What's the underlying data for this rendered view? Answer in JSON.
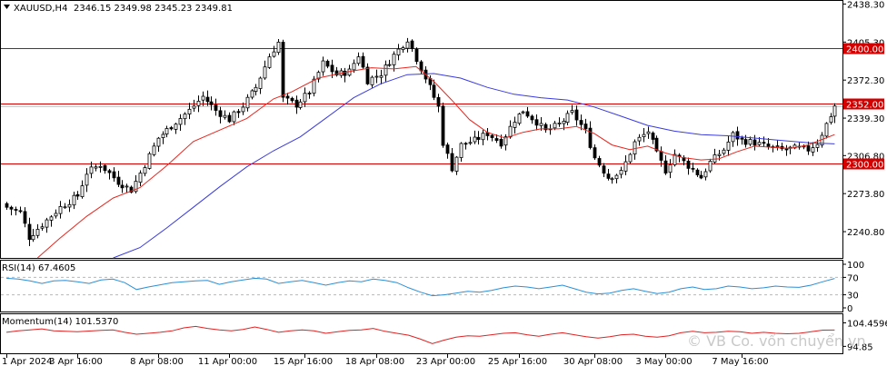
{
  "symbol_header": {
    "symbol": "XAUUSD,H4",
    "ohlc": "2346.15 2349.98 2345.23 2349.81"
  },
  "watermark": "© VB Co. vốn chuyển vn",
  "colors": {
    "bull": "#000000",
    "bear": "#000000",
    "ma_fast": "#e8261e",
    "ma_slow": "#3a3ae0",
    "level": "#d40000",
    "rsi": "#2d8fd6",
    "momentum": "#e02222",
    "level_label_bg": "#d40000",
    "level_label_text": "#ffffff"
  },
  "chart_data": [
    {
      "type": "candlestick",
      "title": "XAUUSD,H4",
      "ylim": [
        2218,
        2441
      ],
      "price_ticks": [
        "2438.30",
        "2405.30",
        "2372.30",
        "2339.30",
        "2306.80",
        "2273.80",
        "2240.80"
      ],
      "x_labels": [
        "1 Apr 2024",
        "3 Apr 16:00",
        "8 Apr 08:00",
        "11 Apr 00:00",
        "15 Apr 16:00",
        "18 Apr 08:00",
        "23 Apr 00:00",
        "25 Apr 16:00",
        "30 Apr 08:00",
        "3 May 00:00",
        "7 May 16:00"
      ],
      "x_label_bar_index": [
        0,
        16,
        34,
        50,
        67,
        83,
        99,
        115,
        132,
        148,
        165
      ],
      "levels": [
        {
          "label": "2400.00",
          "value": 2400.0
        },
        {
          "label": "2352.00",
          "value": 2352.0
        },
        {
          "label": "2300.00",
          "value": 2300.0
        }
      ],
      "current_price": 2349.81,
      "close_path": [
        [
          0,
          2262
        ],
        [
          3,
          2258
        ],
        [
          5,
          2236
        ],
        [
          8,
          2247
        ],
        [
          12,
          2262
        ],
        [
          16,
          2272
        ],
        [
          18,
          2292
        ],
        [
          21,
          2299
        ],
        [
          25,
          2284
        ],
        [
          28,
          2277
        ],
        [
          31,
          2299
        ],
        [
          34,
          2322
        ],
        [
          38,
          2336
        ],
        [
          41,
          2346
        ],
        [
          44,
          2358
        ],
        [
          47,
          2346
        ],
        [
          50,
          2338
        ],
        [
          53,
          2350
        ],
        [
          56,
          2366
        ],
        [
          59,
          2393
        ],
        [
          61,
          2405
        ],
        [
          62,
          2356
        ],
        [
          65,
          2351
        ],
        [
          68,
          2362
        ],
        [
          71,
          2387
        ],
        [
          74,
          2377
        ],
        [
          77,
          2380
        ],
        [
          79,
          2394
        ],
        [
          81,
          2372
        ],
        [
          84,
          2378
        ],
        [
          87,
          2394
        ],
        [
          90,
          2408
        ],
        [
          92,
          2391
        ],
        [
          95,
          2366
        ],
        [
          97,
          2349
        ],
        [
          98,
          2318
        ],
        [
          100,
          2296
        ],
        [
          102,
          2316
        ],
        [
          105,
          2320
        ],
        [
          108,
          2326
        ],
        [
          111,
          2318
        ],
        [
          114,
          2338
        ],
        [
          116,
          2346
        ],
        [
          119,
          2336
        ],
        [
          121,
          2328
        ],
        [
          124,
          2334
        ],
        [
          127,
          2344
        ],
        [
          130,
          2328
        ],
        [
          132,
          2305
        ],
        [
          135,
          2288
        ],
        [
          138,
          2292
        ],
        [
          141,
          2318
        ],
        [
          144,
          2328
        ],
        [
          146,
          2308
        ],
        [
          148,
          2294
        ],
        [
          150,
          2308
        ],
        [
          153,
          2298
        ],
        [
          156,
          2288
        ],
        [
          158,
          2301
        ],
        [
          161,
          2312
        ],
        [
          163,
          2325
        ],
        [
          165,
          2320
        ],
        [
          168,
          2318
        ],
        [
          171,
          2314
        ],
        [
          174,
          2312
        ],
        [
          177,
          2313
        ],
        [
          180,
          2312
        ],
        [
          182,
          2318
        ],
        [
          184,
          2334
        ],
        [
          186,
          2349.81
        ]
      ],
      "ma_fast_path": [
        [
          7,
          2218
        ],
        [
          12,
          2235
        ],
        [
          18,
          2254
        ],
        [
          24,
          2270
        ],
        [
          30,
          2279
        ],
        [
          36,
          2298
        ],
        [
          42,
          2319
        ],
        [
          48,
          2329
        ],
        [
          54,
          2339
        ],
        [
          60,
          2356
        ],
        [
          64,
          2362
        ],
        [
          70,
          2374
        ],
        [
          76,
          2379
        ],
        [
          82,
          2383
        ],
        [
          87,
          2382
        ],
        [
          92,
          2384
        ],
        [
          96,
          2371
        ],
        [
          100,
          2355
        ],
        [
          104,
          2338
        ],
        [
          108,
          2327
        ],
        [
          112,
          2322
        ],
        [
          116,
          2327
        ],
        [
          120,
          2330
        ],
        [
          124,
          2330
        ],
        [
          128,
          2332
        ],
        [
          132,
          2326
        ],
        [
          136,
          2316
        ],
        [
          140,
          2312
        ],
        [
          144,
          2315
        ],
        [
          148,
          2309
        ],
        [
          152,
          2305
        ],
        [
          156,
          2303
        ],
        [
          160,
          2304
        ],
        [
          164,
          2310
        ],
        [
          168,
          2315
        ],
        [
          172,
          2314
        ],
        [
          176,
          2313
        ],
        [
          180,
          2316
        ],
        [
          184,
          2322
        ],
        [
          186,
          2325
        ]
      ],
      "ma_slow_path": [
        [
          24,
          2218
        ],
        [
          30,
          2227
        ],
        [
          36,
          2244
        ],
        [
          42,
          2262
        ],
        [
          48,
          2280
        ],
        [
          54,
          2297
        ],
        [
          60,
          2311
        ],
        [
          66,
          2323
        ],
        [
          72,
          2340
        ],
        [
          78,
          2357
        ],
        [
          84,
          2369
        ],
        [
          90,
          2377
        ],
        [
          96,
          2378
        ],
        [
          102,
          2374
        ],
        [
          108,
          2366
        ],
        [
          114,
          2360
        ],
        [
          120,
          2357
        ],
        [
          126,
          2355
        ],
        [
          132,
          2349
        ],
        [
          138,
          2341
        ],
        [
          144,
          2333
        ],
        [
          150,
          2328
        ],
        [
          156,
          2325
        ],
        [
          162,
          2324
        ],
        [
          168,
          2322
        ],
        [
          174,
          2320
        ],
        [
          180,
          2318
        ],
        [
          186,
          2317
        ]
      ]
    },
    {
      "type": "line",
      "title": "RSI(14) 67.4605",
      "ylim": [
        0,
        100
      ],
      "ticks": [
        "100",
        "70",
        "30",
        "0"
      ],
      "overbought": 70,
      "oversold": 30,
      "series": [
        {
          "name": "RSI(14)",
          "values": [
            68,
            66,
            62,
            56,
            62,
            63,
            60,
            56,
            64,
            66,
            58,
            42,
            48,
            53,
            58,
            60,
            62,
            63,
            54,
            60,
            64,
            68,
            66,
            56,
            60,
            63,
            58,
            52,
            58,
            62,
            60,
            66,
            63,
            58,
            46,
            36,
            28,
            30,
            34,
            38,
            36,
            40,
            46,
            50,
            48,
            44,
            48,
            52,
            44,
            36,
            32,
            34,
            40,
            44,
            38,
            33,
            36,
            44,
            48,
            42,
            44,
            50,
            48,
            44,
            46,
            50,
            48,
            47,
            52,
            60,
            67.46
          ]
        }
      ]
    },
    {
      "type": "line",
      "title": "Momentum(14) 101.5370",
      "ticks": [
        "104.4596",
        "94.85"
      ],
      "ylim": [
        93.5,
        106.5
      ],
      "series": [
        {
          "name": "Momentum(14)",
          "values": [
            100.6,
            101.2,
            101.6,
            102.0,
            101.2,
            101.0,
            100.8,
            101.1,
            101.4,
            101.6,
            100.6,
            99.8,
            100.2,
            100.6,
            101.2,
            102.4,
            103.0,
            102.2,
            101.6,
            101.2,
            101.8,
            102.8,
            101.8,
            100.6,
            101.2,
            101.6,
            101.2,
            100.2,
            100.8,
            101.4,
            101.6,
            102.2,
            101.0,
            100.2,
            99.4,
            97.8,
            96.0,
            97.4,
            98.6,
            99.2,
            99.0,
            99.6,
            100.2,
            100.4,
            99.6,
            99.0,
            99.8,
            100.4,
            99.6,
            98.8,
            98.2,
            98.8,
            99.6,
            99.8,
            99.0,
            98.6,
            99.2,
            100.4,
            101.0,
            100.4,
            100.6,
            101.0,
            100.8,
            100.2,
            100.6,
            100.2,
            100.0,
            100.2,
            100.8,
            101.5,
            101.537
          ]
        }
      ]
    }
  ]
}
